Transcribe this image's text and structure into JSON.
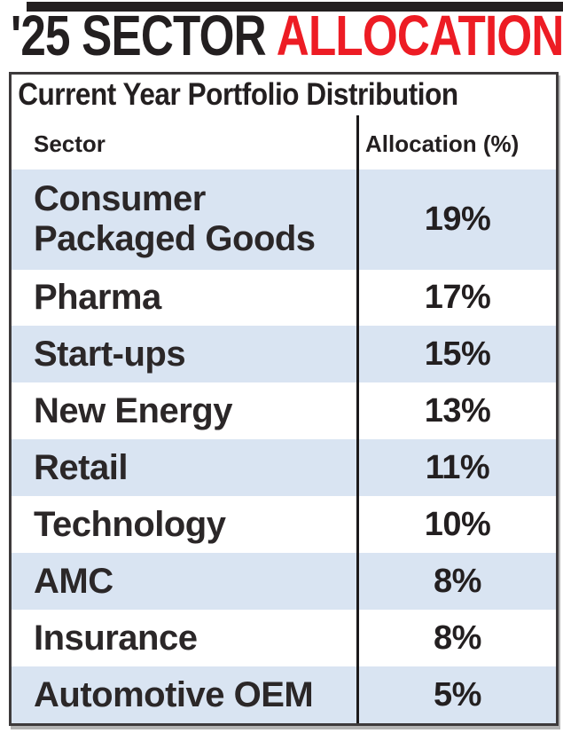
{
  "headline": {
    "black": "'25 SECTOR",
    "red": "ALLOCATION"
  },
  "table": {
    "title": "Current Year Portfolio Distribution",
    "columns": [
      "Sector",
      "Allocation (%)"
    ],
    "rows": [
      {
        "sector": "Consumer Packaged Goods",
        "allocation": "19%"
      },
      {
        "sector": "Pharma",
        "allocation": "17%"
      },
      {
        "sector": "Start-ups",
        "allocation": "15%"
      },
      {
        "sector": "New Energy",
        "allocation": "13%"
      },
      {
        "sector": "Retail",
        "allocation": "11%"
      },
      {
        "sector": "Technology",
        "allocation": "10%"
      },
      {
        "sector": "AMC",
        "allocation": "8%"
      },
      {
        "sector": "Insurance",
        "allocation": "8%"
      },
      {
        "sector": "Automotive OEM",
        "allocation": "5%"
      }
    ]
  },
  "colors": {
    "accent_red": "#ed1c24",
    "row_highlight": "#d9e4f2",
    "text": "#231f20",
    "frame_border": "#3d3a3b"
  },
  "chart_data": {
    "type": "table",
    "title": "'25 Sector Allocation",
    "subtitle": "Current Year Portfolio Distribution",
    "columns": [
      "Sector",
      "Allocation (%)"
    ],
    "categories": [
      "Consumer Packaged Goods",
      "Pharma",
      "Start-ups",
      "New Energy",
      "Retail",
      "Technology",
      "AMC",
      "Insurance",
      "Automotive OEM"
    ],
    "values": [
      19,
      17,
      15,
      13,
      11,
      10,
      8,
      8,
      5
    ],
    "legend_position": "none",
    "grid": false
  }
}
